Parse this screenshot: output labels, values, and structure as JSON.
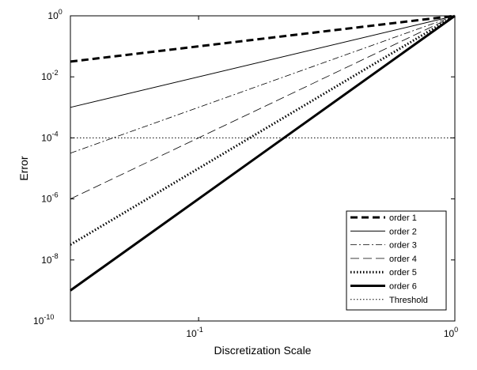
{
  "chart_data": {
    "type": "line",
    "title": "",
    "xlabel": "Discretization Scale",
    "ylabel": "Error",
    "xscale": "log",
    "yscale": "log",
    "xlim": [
      0.0316,
      1
    ],
    "ylim": [
      1e-10,
      1
    ],
    "grid": false,
    "legend_position": "bottom-right",
    "x_ticks": [
      {
        "value": 0.1,
        "base": "10",
        "exp": "-1"
      },
      {
        "value": 1,
        "base": "10",
        "exp": "0"
      }
    ],
    "y_ticks": [
      {
        "value": 1,
        "base": "10",
        "exp": "0"
      },
      {
        "value": 0.01,
        "base": "10",
        "exp": "-2"
      },
      {
        "value": 0.0001,
        "base": "10",
        "exp": "-4"
      },
      {
        "value": 1e-06,
        "base": "10",
        "exp": "-6"
      },
      {
        "value": 1e-08,
        "base": "10",
        "exp": "-8"
      },
      {
        "value": 1e-10,
        "base": "10",
        "exp": "-10"
      }
    ],
    "x": [
      0.0316,
      1
    ],
    "series": [
      {
        "name": "order 1",
        "values": [
          0.0316,
          1
        ],
        "color": "#000000",
        "width": 3,
        "dash": "9,5"
      },
      {
        "name": "order 2",
        "values": [
          0.001,
          1
        ],
        "color": "#000000",
        "width": 1,
        "dash": ""
      },
      {
        "name": "order 3",
        "values": [
          3.16e-05,
          1
        ],
        "color": "#000000",
        "width": 0.8,
        "dash": "8,3,2,3"
      },
      {
        "name": "order 4",
        "values": [
          1e-06,
          1
        ],
        "color": "#000000",
        "width": 0.8,
        "dash": "11,5"
      },
      {
        "name": "order 5",
        "values": [
          3.16e-08,
          1
        ],
        "color": "#000000",
        "width": 3,
        "dash": "1.5,2.5"
      },
      {
        "name": "order 6",
        "values": [
          1e-09,
          1
        ],
        "color": "#000000",
        "width": 3,
        "dash": ""
      },
      {
        "name": "Threshold",
        "values": [
          0.0001,
          0.0001
        ],
        "color": "#000000",
        "width": 1,
        "dash": "1.5,2.5"
      }
    ]
  }
}
